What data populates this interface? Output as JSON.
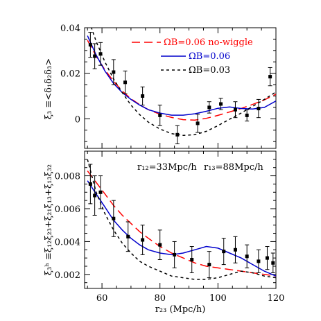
{
  "chart_data": [
    {
      "type": "line",
      "ylabel": "ξ₃ ≡<δ₁δ₂δ₃>",
      "ylim": [
        -0.013,
        0.04
      ],
      "xlim": [
        54,
        120
      ],
      "yticks": [
        {
          "v": 0,
          "label": "0"
        },
        {
          "v": 0.02,
          "label": "0.02"
        },
        {
          "v": 0.04,
          "label": "0.04"
        }
      ],
      "legend_position": "top-right",
      "series": [
        {
          "name": "ΩB=0.06 no-wiggle",
          "color": "#ff0000",
          "dash": "12,6",
          "x": [
            55,
            58,
            61,
            64,
            67,
            70,
            73,
            76,
            80,
            84,
            88,
            92,
            96,
            100,
            104,
            108,
            112,
            116,
            120
          ],
          "y": [
            0.0345,
            0.0275,
            0.0215,
            0.0165,
            0.0122,
            0.0088,
            0.0062,
            0.004,
            0.002,
            0.0006,
            -0.0004,
            -0.0006,
            0.0002,
            0.0015,
            0.003,
            0.0045,
            0.0063,
            0.0083,
            0.0108
          ]
        },
        {
          "name": "ΩB=0.06",
          "color": "#0000cc",
          "dash": "",
          "x": [
            55,
            58,
            61,
            64,
            67,
            70,
            73,
            76,
            80,
            84,
            88,
            92,
            96,
            100,
            104,
            108,
            112,
            116,
            120
          ],
          "y": [
            0.0365,
            0.028,
            0.021,
            0.0155,
            0.0115,
            0.0085,
            0.006,
            0.004,
            0.0025,
            0.0016,
            0.0016,
            0.0022,
            0.0033,
            0.0046,
            0.0052,
            0.0045,
            0.0043,
            0.005,
            0.0078
          ]
        },
        {
          "name": "ΩB=0.03",
          "color": "#000000",
          "dash": "4,4",
          "x": [
            55,
            58,
            61,
            64,
            67,
            70,
            73,
            76,
            80,
            84,
            88,
            92,
            96,
            100,
            104,
            108,
            112,
            116,
            120
          ],
          "y": [
            0.045,
            0.034,
            0.025,
            0.0175,
            0.0115,
            0.006,
            0.0018,
            -0.0015,
            -0.0045,
            -0.0065,
            -0.0073,
            -0.007,
            -0.0055,
            -0.003,
            -0.0002,
            0.0025,
            0.0055,
            0.0085,
            0.0118
          ]
        }
      ],
      "points": [
        {
          "x": 56,
          "y": 0.0325,
          "e": 0.0055
        },
        {
          "x": 57.5,
          "y": 0.0275,
          "e": 0.0055
        },
        {
          "x": 59.5,
          "y": 0.0285,
          "e": 0.005
        },
        {
          "x": 64,
          "y": 0.0205,
          "e": 0.0055
        },
        {
          "x": 68,
          "y": 0.016,
          "e": 0.005
        },
        {
          "x": 74,
          "y": 0.01,
          "e": 0.004
        },
        {
          "x": 80,
          "y": 0.0015,
          "e": 0.0045
        },
        {
          "x": 86,
          "y": -0.007,
          "e": 0.004
        },
        {
          "x": 93,
          "y": -0.002,
          "e": 0.004
        },
        {
          "x": 97,
          "y": 0.005,
          "e": 0.0025
        },
        {
          "x": 101,
          "y": 0.0065,
          "e": 0.0025
        },
        {
          "x": 106,
          "y": 0.004,
          "e": 0.0035
        },
        {
          "x": 110,
          "y": 0.0015,
          "e": 0.0025
        },
        {
          "x": 114,
          "y": 0.0045,
          "e": 0.004
        },
        {
          "x": 118,
          "y": 0.0185,
          "e": 0.004
        }
      ]
    },
    {
      "type": "line",
      "ylabel": "ξ₃ʰ ≡ξ₁₂ξ₂₃+ξ₂₁ξ₁₃+ξ₁₃ξ₃₂",
      "xlabel": "r₂₃ (Mpc/h)",
      "ylim": [
        0.00115,
        0.0095
      ],
      "xlim": [
        54,
        120
      ],
      "xticks": [
        {
          "v": 60,
          "label": "60"
        },
        {
          "v": 80,
          "label": "80"
        },
        {
          "v": 100,
          "label": "100"
        },
        {
          "v": 120,
          "label": "120"
        }
      ],
      "yticks": [
        {
          "v": 0.002,
          "label": "0.002"
        },
        {
          "v": 0.004,
          "label": "0.004"
        },
        {
          "v": 0.006,
          "label": "0.006"
        },
        {
          "v": 0.008,
          "label": "0.008"
        }
      ],
      "annotations": [
        "r₁₂=33Mpc/h",
        "r₁₃=88Mpc/h"
      ],
      "series": [
        {
          "name": "ΩB=0.06 no-wiggle",
          "color": "#ff0000",
          "dash": "12,6",
          "x": [
            55,
            58,
            61,
            64,
            67,
            70,
            73,
            76,
            80,
            84,
            88,
            92,
            96,
            100,
            104,
            108,
            112,
            116,
            120
          ],
          "y": [
            0.0083,
            0.0076,
            0.0069,
            0.0062,
            0.0056,
            0.0051,
            0.0046,
            0.0042,
            0.0037,
            0.0033,
            0.003,
            0.0027,
            0.0025,
            0.0024,
            0.0023,
            0.0022,
            0.0021,
            0.002,
            0.0019
          ]
        },
        {
          "name": "ΩB=0.06",
          "color": "#0000cc",
          "dash": "",
          "x": [
            55,
            58,
            61,
            64,
            67,
            70,
            73,
            76,
            80,
            84,
            88,
            92,
            96,
            100,
            104,
            108,
            112,
            116,
            120
          ],
          "y": [
            0.0077,
            0.0069,
            0.0061,
            0.0053,
            0.0047,
            0.0042,
            0.0038,
            0.0035,
            0.0033,
            0.0032,
            0.0033,
            0.0035,
            0.0037,
            0.0036,
            0.0033,
            0.003,
            0.0026,
            0.0022,
            0.0019
          ]
        },
        {
          "name": "ΩB=0.03",
          "color": "#000000",
          "dash": "4,4",
          "x": [
            55,
            58,
            61,
            64,
            67,
            70,
            73,
            76,
            80,
            84,
            88,
            92,
            96,
            100,
            104,
            108,
            112,
            116,
            120
          ],
          "y": [
            0.009,
            0.007,
            0.0057,
            0.0047,
            0.0039,
            0.0033,
            0.0028,
            0.0025,
            0.0022,
            0.0019,
            0.0018,
            0.0017,
            0.0017,
            0.0018,
            0.002,
            0.0022,
            0.0021,
            0.0019,
            0.0018
          ]
        }
      ],
      "points": [
        {
          "x": 56,
          "y": 0.0075,
          "e": 0.0012
        },
        {
          "x": 57.5,
          "y": 0.0068,
          "e": 0.0012
        },
        {
          "x": 59.5,
          "y": 0.007,
          "e": 0.001
        },
        {
          "x": 64,
          "y": 0.0054,
          "e": 0.0011
        },
        {
          "x": 69,
          "y": 0.0043,
          "e": 0.0009
        },
        {
          "x": 74,
          "y": 0.0041,
          "e": 0.0009
        },
        {
          "x": 80,
          "y": 0.0038,
          "e": 0.0009
        },
        {
          "x": 85,
          "y": 0.0032,
          "e": 0.0008
        },
        {
          "x": 91,
          "y": 0.0029,
          "e": 0.0008
        },
        {
          "x": 97,
          "y": 0.0026,
          "e": 0.0008
        },
        {
          "x": 102,
          "y": 0.0034,
          "e": 0.0008
        },
        {
          "x": 106,
          "y": 0.0035,
          "e": 0.0008
        },
        {
          "x": 110,
          "y": 0.0031,
          "e": 0.0007
        },
        {
          "x": 114,
          "y": 0.0028,
          "e": 0.0007
        },
        {
          "x": 117,
          "y": 0.003,
          "e": 0.0007
        },
        {
          "x": 119,
          "y": 0.0027,
          "e": 0.0006
        }
      ]
    }
  ]
}
